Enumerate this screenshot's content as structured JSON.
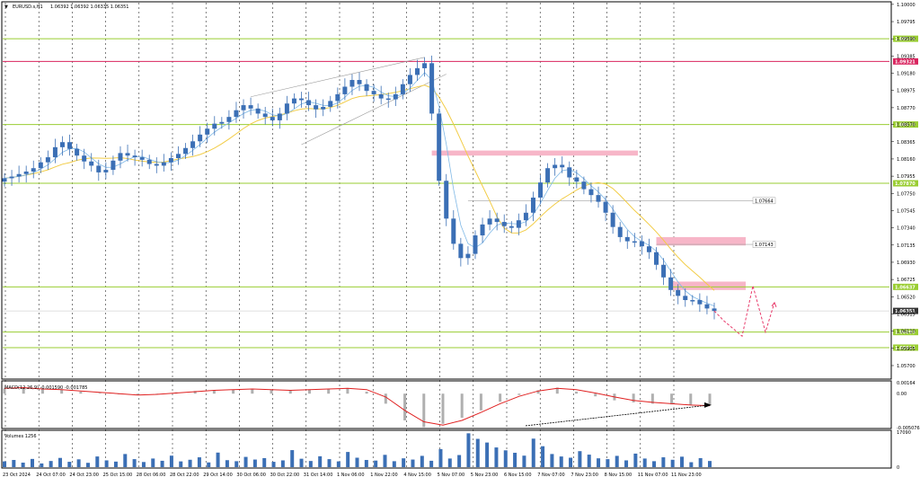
{
  "window": {
    "symbol_title": "EURUSD.s,H1",
    "ohlc_text": "1.06392 1.06392 1.06335 1.06351",
    "menu_glyph": "▼"
  },
  "colors": {
    "background": "#ffffff",
    "candle": "#3b6fb5",
    "fast_ma": "#7fb8e6",
    "slow_ma": "#f2cc46",
    "support_level": "#9acd32",
    "resistance_level": "#d9245e",
    "zone_fill": "#f7b6c8",
    "projection": "#e83a6a",
    "wedge": "#9a9a9a",
    "macd_signal": "#e02020",
    "macd_hist": "#b0b0b0",
    "divergence_arrow": "#000000",
    "volume_bar": "#3b6fb5",
    "level_tag_text": "#ffffff"
  },
  "chart_data": [
    {
      "type": "candlestick",
      "name": "main-price",
      "title": "EURUSD.s,H1",
      "ylim": [
        1.0555,
        1.1002
      ],
      "y_ticks": [
        "1.10000",
        "1.09795",
        "1.09590",
        "1.09385",
        "1.09180",
        "1.08975",
        "1.08770",
        "1.08570",
        "1.08365",
        "1.08160",
        "1.07955",
        "1.07750",
        "1.07545",
        "1.07340",
        "1.07135",
        "1.06930",
        "1.06725",
        "1.06520",
        "1.06315",
        "1.06110",
        "1.05905",
        "1.05700"
      ],
      "x_ticks": [
        "23 Oct 2024",
        "24 Oct 07:00",
        "24 Oct 23:00",
        "25 Oct 15:00",
        "28 Oct 06:00",
        "28 Oct 22:00",
        "29 Oct 14:00",
        "30 Oct 06:00",
        "30 Oct 22:00",
        "31 Oct 14:00",
        "1 Nov 06:00",
        "1 Nov 22:00",
        "4 Nov 15:00",
        "5 Nov 07:00",
        "5 Nov 23:00",
        "6 Nov 15:00",
        "7 Nov 07:00",
        "7 Nov 23:00",
        "8 Nov 15:00",
        "11 Nov 07:00",
        "11 Nov 23:00"
      ],
      "closes": [
        1.0793,
        1.0795,
        1.0798,
        1.0801,
        1.0805,
        1.0812,
        1.0818,
        1.083,
        1.0836,
        1.0828,
        1.082,
        1.0813,
        1.0808,
        1.08,
        1.0803,
        1.0814,
        1.0823,
        1.082,
        1.0818,
        1.0815,
        1.081,
        1.0808,
        1.0812,
        1.0817,
        1.0822,
        1.0829,
        1.0837,
        1.0845,
        1.0852,
        1.0858,
        1.086,
        1.0866,
        1.0874,
        1.088,
        1.0876,
        1.087,
        1.0866,
        1.0862,
        1.087,
        1.0882,
        1.0888,
        1.0886,
        1.088,
        1.0875,
        1.0878,
        1.0885,
        1.0893,
        1.0902,
        1.091,
        1.0905,
        1.0897,
        1.0893,
        1.0888,
        1.0887,
        1.0893,
        1.0905,
        1.0916,
        1.0924,
        1.093,
        1.087,
        1.079,
        1.0745,
        1.0715,
        1.0698,
        1.0703,
        1.0725,
        1.0738,
        1.0745,
        1.0741,
        1.0736,
        1.0734,
        1.0743,
        1.0752,
        1.077,
        1.0788,
        1.0805,
        1.0809,
        1.0806,
        1.0794,
        1.0789,
        1.078,
        1.0773,
        1.0765,
        1.0752,
        1.0735,
        1.0723,
        1.0718,
        1.0718,
        1.0712,
        1.0705,
        1.069,
        1.0675,
        1.066,
        1.0653,
        1.0648,
        1.0648,
        1.0643,
        1.0638,
        1.0635
      ],
      "support_levels": [
        {
          "label": "1.09591",
          "value": 1.09591
        },
        {
          "label": "1.08570",
          "value": 1.0857
        },
        {
          "label": "1.07870",
          "value": 1.0787
        },
        {
          "label": "1.06637",
          "value": 1.06637
        },
        {
          "label": "1.06099",
          "value": 1.06099
        },
        {
          "label": "1.05914",
          "value": 1.05914
        }
      ],
      "resistance_level": {
        "label": "1.09321",
        "value": 1.09321
      },
      "current_price": {
        "label": "1.06351",
        "value": 1.06351
      },
      "target_levels": [
        {
          "label": "1.07664",
          "value": 1.07664
        },
        {
          "label": "1.07143",
          "value": 1.07143
        }
      ],
      "zones": [
        {
          "from": 1.082,
          "to": 1.0826
        },
        {
          "from": 1.0713,
          "to": 1.0723
        },
        {
          "from": 1.066,
          "to": 1.067
        }
      ],
      "projection_path": [
        1.06351,
        1.0623,
        1.0605,
        1.0665,
        1.061,
        1.0645
      ]
    },
    {
      "type": "macd",
      "name": "macd-indicator",
      "title": "MACD(12,26,9) -0.001590 -0.001785",
      "ylim": [
        -0.005076,
        0.00164
      ],
      "y_ticks": [
        "0.00164",
        "0.00",
        "-0.005076"
      ],
      "signal": [
        0.0008,
        0.0009,
        0.0007,
        0.0006,
        0.0004,
        0.0002,
        0.0,
        -0.0002,
        -0.0001,
        0.0001,
        0.0003,
        0.0005,
        0.0006,
        0.0007,
        0.0006,
        0.0005,
        0.0006,
        0.0007,
        0.0008,
        0.0006,
        -0.0005,
        -0.0025,
        -0.0042,
        -0.0047,
        -0.004,
        -0.0028,
        -0.0015,
        -0.0004,
        0.0004,
        0.0008,
        0.0006,
        0.0001,
        -0.0005,
        -0.001,
        -0.0013,
        -0.0015,
        -0.0017,
        -0.0018
      ],
      "histogram": [
        0.0008,
        0.0009,
        0.0008,
        0.0006,
        0.0003,
        0.0001,
        -0.0001,
        -0.0002,
        0.0,
        0.0002,
        0.0004,
        0.0005,
        0.0006,
        0.0007,
        0.0006,
        0.0005,
        0.0006,
        0.0007,
        0.0008,
        0.0003,
        -0.0015,
        -0.004,
        -0.005,
        -0.0045,
        -0.0036,
        -0.0025,
        -0.0012,
        -0.0002,
        0.0005,
        0.0009,
        0.0003,
        -0.0004,
        -0.001,
        -0.0013,
        -0.0015,
        -0.0016,
        -0.0017,
        -0.0016
      ]
    },
    {
      "type": "bar",
      "name": "volume-indicator",
      "title": "Volumes 1256",
      "ylim": [
        0,
        17090
      ],
      "y_ticks": [
        "17090",
        "0"
      ],
      "values": [
        2800,
        3500,
        2200,
        4000,
        1800,
        3000,
        4500,
        2600,
        3800,
        2100,
        5200,
        3300,
        2700,
        6400,
        3900,
        2500,
        4200,
        3100,
        5600,
        2800,
        3600,
        4800,
        2300,
        7100,
        3400,
        2900,
        5000,
        3700,
        4400,
        2600,
        3300,
        8300,
        4100,
        3000,
        5300,
        3900,
        2800,
        7400,
        4600,
        3500,
        3200,
        6000,
        2900,
        4300,
        3700,
        5500,
        3100,
        8800,
        4200,
        5900,
        16500,
        13800,
        12000,
        9600,
        8200,
        7000,
        5600,
        13900,
        10200,
        6400,
        5200,
        4600,
        7800,
        6100,
        4300,
        3900,
        5500,
        3300,
        6600,
        4200,
        2900,
        4800,
        3600,
        5100,
        2400,
        4400,
        3000
      ]
    }
  ]
}
